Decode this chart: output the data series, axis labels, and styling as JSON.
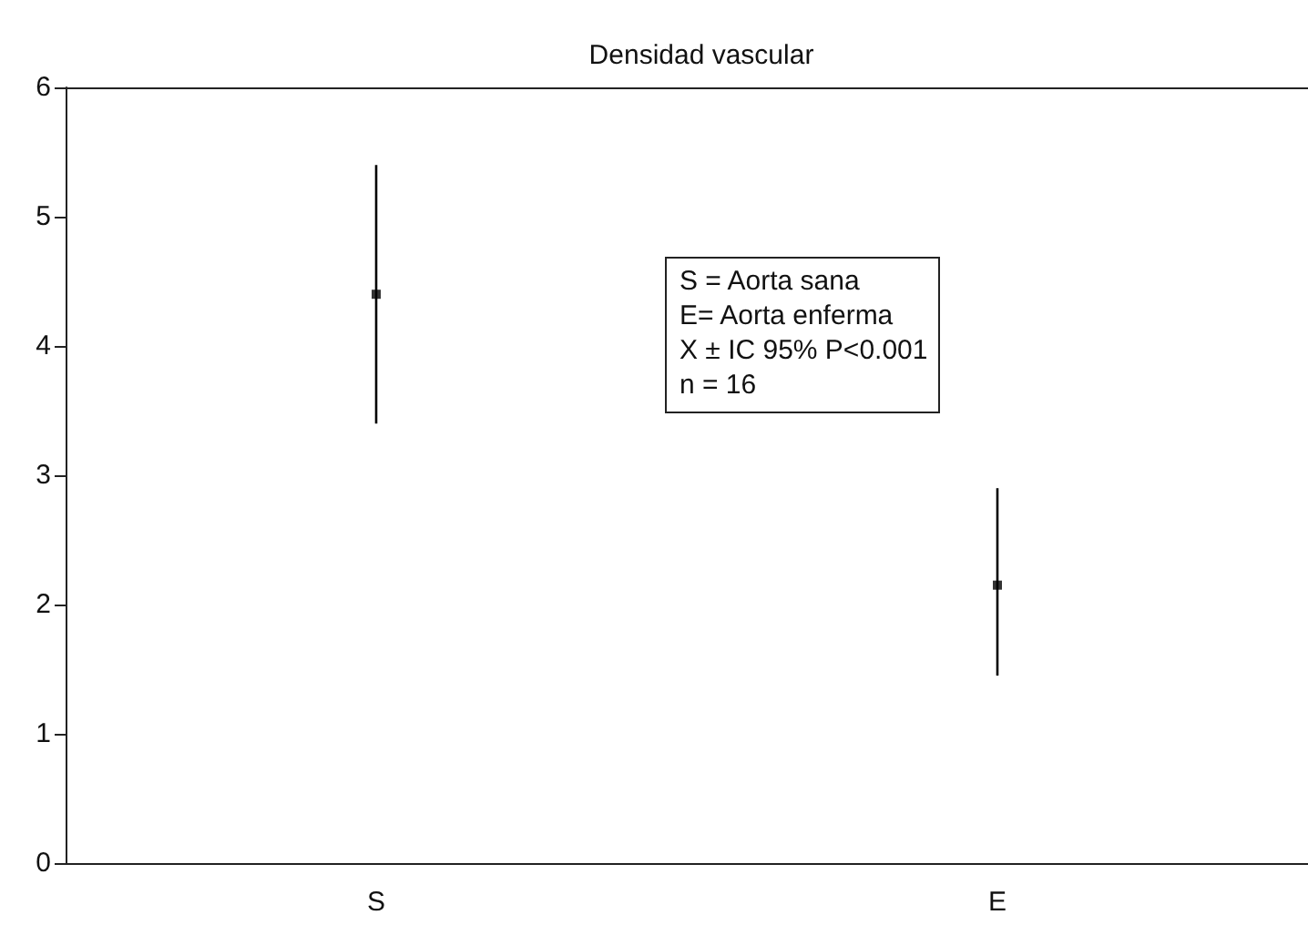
{
  "chart_data": {
    "type": "scatter",
    "title": "Densidad vascular",
    "categories": [
      "S",
      "E"
    ],
    "values": [
      4.4,
      2.15
    ],
    "errors": [
      [
        3.4,
        5.4
      ],
      [
        1.45,
        2.9
      ]
    ],
    "color": "#000000",
    "marker": "square",
    "ylim": [
      0,
      6
    ],
    "yticks": [
      0,
      1,
      2,
      3,
      4,
      5,
      6
    ],
    "grid": false,
    "annotations": [
      "S = Aorta sana",
      "E= Aorta enferma",
      "X ± IC 95% P<0.001",
      "n = 16"
    ]
  }
}
